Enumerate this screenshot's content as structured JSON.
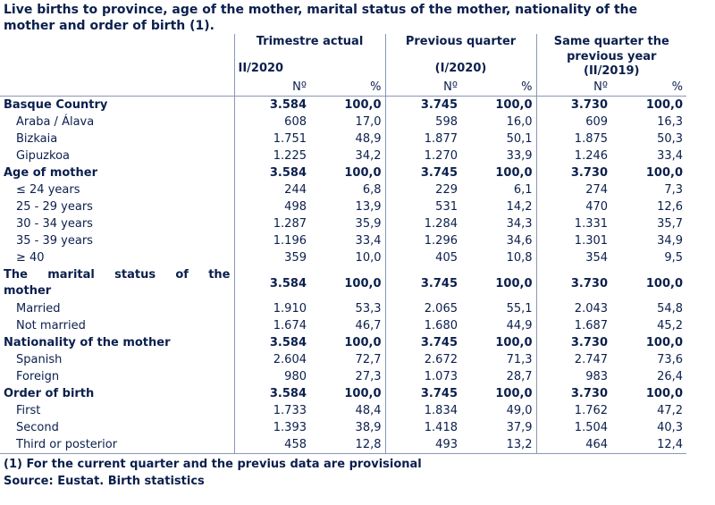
{
  "title": "Live births to province, age of the mother, marital status of the mother, nationality of the mother and order of birth (1).",
  "headers": {
    "groups": [
      {
        "line1": "Trimestre actual",
        "line2": "II/2020"
      },
      {
        "line1": "Previous quarter",
        "line2": "(I/2020)"
      },
      {
        "line1": "Same quarter the previous year",
        "line2": "(II/2019)"
      }
    ],
    "num_label": "Nº",
    "pct_label": "%"
  },
  "rows": [
    {
      "label": "Basque Country",
      "type": "section",
      "bold": true,
      "values": [
        "3.584",
        "100,0",
        "3.745",
        "100,0",
        "3.730",
        "100,0"
      ]
    },
    {
      "label": "Araba / Álava",
      "type": "item",
      "values": [
        "608",
        "17,0",
        "598",
        "16,0",
        "609",
        "16,3"
      ]
    },
    {
      "label": "Bizkaia",
      "type": "item",
      "values": [
        "1.751",
        "48,9",
        "1.877",
        "50,1",
        "1.875",
        "50,3"
      ]
    },
    {
      "label": "Gipuzkoa",
      "type": "item",
      "values": [
        "1.225",
        "34,2",
        "1.270",
        "33,9",
        "1.246",
        "33,4"
      ]
    },
    {
      "label": "Age of mother",
      "type": "section",
      "bold": true,
      "values": [
        "3.584",
        "100,0",
        "3.745",
        "100,0",
        "3.730",
        "100,0"
      ]
    },
    {
      "label": "≤ 24 years",
      "type": "item",
      "values": [
        "244",
        "6,8",
        "229",
        "6,1",
        "274",
        "7,3"
      ]
    },
    {
      "label": "25 - 29 years",
      "type": "item",
      "values": [
        "498",
        "13,9",
        "531",
        "14,2",
        "470",
        "12,6"
      ]
    },
    {
      "label": "30 - 34 years",
      "type": "item",
      "values": [
        "1.287",
        "35,9",
        "1.284",
        "34,3",
        "1.331",
        "35,7"
      ]
    },
    {
      "label": "35 - 39 years",
      "type": "item",
      "values": [
        "1.196",
        "33,4",
        "1.296",
        "34,6",
        "1.301",
        "34,9"
      ]
    },
    {
      "label": "≥ 40",
      "type": "item",
      "values": [
        "359",
        "10,0",
        "405",
        "10,8",
        "354",
        "9,5"
      ]
    },
    {
      "label1": "The marital status of the",
      "label2": "mother",
      "type": "section-wrap",
      "bold": true,
      "values": [
        "3.584",
        "100,0",
        "3.745",
        "100,0",
        "3.730",
        "100,0"
      ]
    },
    {
      "label": "Married",
      "type": "item",
      "values": [
        "1.910",
        "53,3",
        "2.065",
        "55,1",
        "2.043",
        "54,8"
      ]
    },
    {
      "label": "Not married",
      "type": "item",
      "values": [
        "1.674",
        "46,7",
        "1.680",
        "44,9",
        "1.687",
        "45,2"
      ]
    },
    {
      "label": "Nationality of the mother",
      "type": "section",
      "bold": false,
      "values": [
        "3.584",
        "100,0",
        "3.745",
        "100,0",
        "3.730",
        "100,0"
      ]
    },
    {
      "label": "Spanish",
      "type": "item",
      "values": [
        "2.604",
        "72,7",
        "2.672",
        "71,3",
        "2.747",
        "73,6"
      ]
    },
    {
      "label": "Foreign",
      "type": "item",
      "values": [
        "980",
        "27,3",
        "1.073",
        "28,7",
        "983",
        "26,4"
      ]
    },
    {
      "label": "Order of birth",
      "type": "section",
      "bold": true,
      "values": [
        "3.584",
        "100,0",
        "3.745",
        "100,0",
        "3.730",
        "100,0"
      ]
    },
    {
      "label": "First",
      "type": "item",
      "values": [
        "1.733",
        "48,4",
        "1.834",
        "49,0",
        "1.762",
        "47,2"
      ]
    },
    {
      "label": "Second",
      "type": "item",
      "values": [
        "1.393",
        "38,9",
        "1.418",
        "37,9",
        "1.504",
        "40,3"
      ]
    },
    {
      "label": "Third or posterior",
      "type": "item",
      "values": [
        "458",
        "12,8",
        "493",
        "13,2",
        "464",
        "12,4"
      ]
    }
  ],
  "notes": [
    "(1) For the current quarter and the previus data are provisional",
    "Source: Eustat. Birth statistics"
  ]
}
